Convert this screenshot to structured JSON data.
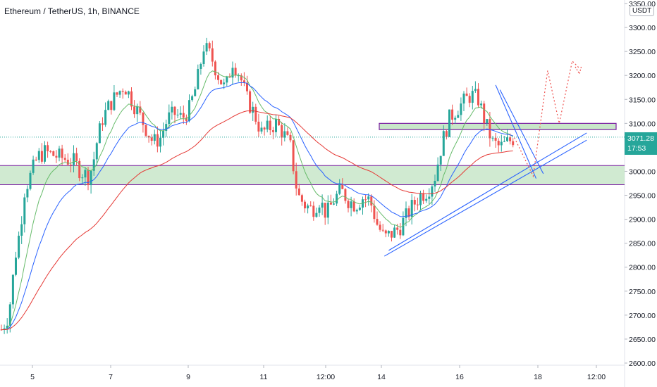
{
  "header": {
    "title": "Ethereum / TetherUS, 1h, BINANCE",
    "currency": "USDT"
  },
  "price_badge": {
    "price": "3071.28",
    "countdown": "17:53",
    "color": "#26a69a"
  },
  "colors": {
    "up": "#26a69a",
    "down": "#ef5350",
    "zone_fill": "#c8e6c9",
    "zone_border": "#7b1fa2",
    "trendline": "#2962ff",
    "ma_fast": "#66bb6a",
    "ma_mid": "#2962ff",
    "ma_slow": "#e53935",
    "projection": "#ef5350"
  },
  "chart_data": {
    "type": "candlestick",
    "title": "Ethereum / TetherUS, 1h, BINANCE",
    "y_axis": {
      "min": 2600,
      "max": 3350,
      "ticks": [
        "3350.00",
        "3300.00",
        "3250.00",
        "3200.00",
        "3150.00",
        "3100.00",
        "3050.00",
        "3000.00",
        "2950.00",
        "2900.00",
        "2850.00",
        "2800.00",
        "2750.00",
        "2700.00",
        "2650.00",
        "2600.00"
      ]
    },
    "x_axis": {
      "ticks": [
        "5",
        "7",
        "9",
        "11",
        "12:00",
        "14",
        "16",
        "18",
        "12:00"
      ]
    },
    "price_path": [
      [
        0,
        2670
      ],
      [
        0.5,
        2700
      ],
      [
        1,
        2830
      ],
      [
        1.3,
        2880
      ],
      [
        1.6,
        2960
      ],
      [
        2,
        2990
      ],
      [
        2.5,
        3030
      ],
      [
        3,
        3040
      ],
      [
        3.5,
        3035
      ],
      [
        4,
        3030
      ],
      [
        4.5,
        3025
      ],
      [
        5,
        3020
      ],
      [
        5.5,
        3000
      ],
      [
        6,
        2990
      ],
      [
        6.3,
        3010
      ],
      [
        6.6,
        3060
      ],
      [
        7,
        3110
      ],
      [
        7.5,
        3140
      ],
      [
        8,
        3160
      ],
      [
        8.5,
        3180
      ],
      [
        9,
        3150
      ],
      [
        9.5,
        3120
      ],
      [
        10,
        3090
      ],
      [
        10.5,
        3060
      ],
      [
        11,
        3070
      ],
      [
        11.5,
        3110
      ],
      [
        12,
        3120
      ],
      [
        12.5,
        3110
      ],
      [
        13,
        3130
      ],
      [
        13.5,
        3180
      ],
      [
        14,
        3260
      ],
      [
        14.5,
        3240
      ],
      [
        15,
        3200
      ],
      [
        15.5,
        3170
      ],
      [
        16,
        3230
      ],
      [
        16.5,
        3200
      ],
      [
        17,
        3150
      ],
      [
        17.5,
        3120
      ],
      [
        18,
        3080
      ],
      [
        18.5,
        3090
      ],
      [
        19,
        3100
      ],
      [
        19.5,
        3080
      ],
      [
        20,
        3050
      ],
      [
        20.5,
        2950
      ],
      [
        21,
        2930
      ],
      [
        21.5,
        2920
      ],
      [
        22,
        2940
      ],
      [
        22.5,
        2910
      ],
      [
        23,
        2940
      ],
      [
        23.5,
        2960
      ],
      [
        24,
        2940
      ],
      [
        24.5,
        2930
      ],
      [
        25,
        2945
      ],
      [
        25.5,
        2940
      ],
      [
        26,
        2890
      ],
      [
        26.5,
        2860
      ],
      [
        27,
        2870
      ],
      [
        27.5,
        2880
      ],
      [
        28,
        2905
      ],
      [
        28.5,
        2930
      ],
      [
        29,
        2950
      ],
      [
        29.5,
        2960
      ],
      [
        30,
        2990
      ],
      [
        30.5,
        3060
      ],
      [
        31,
        3110
      ],
      [
        31.5,
        3130
      ],
      [
        32,
        3145
      ],
      [
        32.5,
        3160
      ],
      [
        33,
        3150
      ],
      [
        33.5,
        3100
      ],
      [
        34,
        3060
      ],
      [
        34.5,
        3050
      ],
      [
        35,
        3060
      ],
      [
        35.5,
        3070
      ]
    ],
    "support_zone": {
      "low": 2972,
      "high": 3012
    },
    "resistance_zone": {
      "low": 3087,
      "high": 3100
    },
    "trendlines": [
      {
        "from": [
          26.5,
          2823
        ],
        "to": [
          40.5,
          3065
        ]
      },
      {
        "from": [
          26.8,
          2835
        ],
        "to": [
          40.5,
          3080
        ]
      },
      {
        "from": [
          34.2,
          3180
        ],
        "to": [
          37.0,
          2985
        ]
      },
      {
        "from": [
          34.5,
          3170
        ],
        "to": [
          37.5,
          2995
        ]
      }
    ],
    "projection": [
      [
        35.5,
        3070
      ],
      [
        36.8,
        2990
      ],
      [
        37.8,
        3210
      ],
      [
        38.6,
        3100
      ],
      [
        39.5,
        3230
      ],
      [
        40,
        3215
      ]
    ]
  }
}
